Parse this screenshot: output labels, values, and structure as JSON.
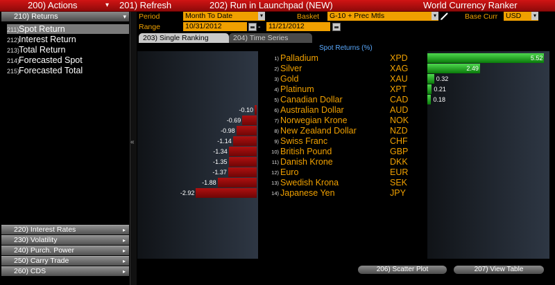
{
  "toolbar": {
    "actions": "200) Actions",
    "actions_arrow": "▾",
    "refresh": "201) Refresh",
    "launchpad": "202) Run in Launchpad (NEW)",
    "title": "World Currency Ranker"
  },
  "sidebar": {
    "header": "210) Returns",
    "header_arrow": "▾",
    "items": [
      {
        "num": "211)",
        "label": "Spot Return"
      },
      {
        "num": "212)",
        "label": "Interest Return"
      },
      {
        "num": "213)",
        "label": "Total Return"
      },
      {
        "num": "214)",
        "label": "Forecasted Spot"
      },
      {
        "num": "215)",
        "label": "Forecasted Total"
      }
    ],
    "bottom": [
      {
        "label": "220) Interest Rates"
      },
      {
        "label": "230) Volatility"
      },
      {
        "label": "240) Purch. Power"
      },
      {
        "label": "250) Carry Trade"
      },
      {
        "label": "260) CDS"
      }
    ],
    "collapse": "«"
  },
  "filters": {
    "period_label": "Period",
    "period_value": "Month To Date",
    "basket_label": "Basket",
    "basket_value": "G-10 + Prec Mtls",
    "base_label": "Base Curr",
    "base_value": "USD",
    "range_label": "Range",
    "range_start": "10/31/2012",
    "range_sep": "-",
    "range_end": "11/21/2012"
  },
  "tabs": [
    "203) Single Ranking",
    "204) Time Series"
  ],
  "buttons": {
    "scatter": "206) Scatter Plot",
    "table": "207) View Table"
  },
  "chart_data": {
    "type": "bar",
    "title": "Spot Returns (%)",
    "rows": [
      {
        "rank": "1)",
        "name": "Palladium",
        "code": "XPD",
        "value": 5.52
      },
      {
        "rank": "2)",
        "name": "Silver",
        "code": "XAG",
        "value": 2.49
      },
      {
        "rank": "3)",
        "name": "Gold",
        "code": "XAU",
        "value": 0.32
      },
      {
        "rank": "4)",
        "name": "Platinum",
        "code": "XPT",
        "value": 0.21
      },
      {
        "rank": "5)",
        "name": "Canadian Dollar",
        "code": "CAD",
        "value": 0.18
      },
      {
        "rank": "6)",
        "name": "Australian Dollar",
        "code": "AUD",
        "value": -0.1
      },
      {
        "rank": "7)",
        "name": "Norwegian Krone",
        "code": "NOK",
        "value": -0.69
      },
      {
        "rank": "8)",
        "name": "New Zealand Dollar",
        "code": "NZD",
        "value": -0.98
      },
      {
        "rank": "9)",
        "name": "Swiss Franc",
        "code": "CHF",
        "value": -1.14
      },
      {
        "rank": "10)",
        "name": "British Pound",
        "code": "GBP",
        "value": -1.34
      },
      {
        "rank": "11)",
        "name": "Danish Krone",
        "code": "DKK",
        "value": -1.35
      },
      {
        "rank": "12)",
        "name": "Euro",
        "code": "EUR",
        "value": -1.37
      },
      {
        "rank": "13)",
        "name": "Swedish Krona",
        "code": "SEK",
        "value": -1.88
      },
      {
        "rank": "14)",
        "name": "Japanese Yen",
        "code": "JPY",
        "value": -2.92
      }
    ],
    "colors": {
      "positive": "#2fbf2f",
      "negative": "#a00c0c",
      "label": "#f0a000"
    }
  }
}
